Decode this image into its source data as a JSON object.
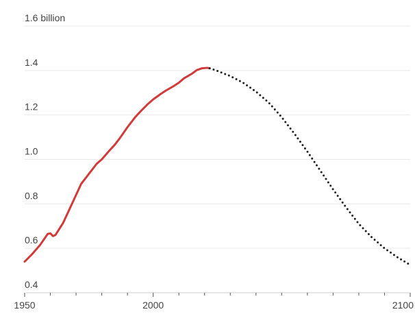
{
  "chart_data": {
    "type": "line",
    "title": "",
    "xlabel": "",
    "ylabel": "",
    "xlim": [
      1950,
      2100
    ],
    "ylim": [
      0.4,
      1.6
    ],
    "grid": true,
    "legend": "none",
    "y_ticks": [
      {
        "value": 0.4,
        "label": "0.4"
      },
      {
        "value": 0.6,
        "label": "0.6"
      },
      {
        "value": 0.8,
        "label": "0.8"
      },
      {
        "value": 1.0,
        "label": "1.0"
      },
      {
        "value": 1.2,
        "label": "1.2"
      },
      {
        "value": 1.4,
        "label": "1.4"
      },
      {
        "value": 1.6,
        "label": "1.6 billion"
      }
    ],
    "x_ticks": [
      {
        "value": 1950,
        "label": "1950"
      },
      {
        "value": 2000,
        "label": "2000"
      },
      {
        "value": 2100,
        "label": "2100"
      }
    ],
    "x_minor_ticks": [
      1960,
      1970,
      1980,
      1990,
      2010,
      2020,
      2030,
      2040,
      2050,
      2060,
      2070,
      2080,
      2090
    ],
    "series": [
      {
        "style": "solid",
        "color": "#d23a3a",
        "points": [
          [
            1950,
            0.54
          ],
          [
            1953,
            0.575
          ],
          [
            1956,
            0.615
          ],
          [
            1959,
            0.665
          ],
          [
            1960,
            0.667
          ],
          [
            1961,
            0.655
          ],
          [
            1962,
            0.66
          ],
          [
            1965,
            0.715
          ],
          [
            1968,
            0.79
          ],
          [
            1970,
            0.84
          ],
          [
            1972,
            0.89
          ],
          [
            1975,
            0.935
          ],
          [
            1978,
            0.98
          ],
          [
            1980,
            1.0
          ],
          [
            1983,
            1.04
          ],
          [
            1985,
            1.065
          ],
          [
            1987,
            1.095
          ],
          [
            1990,
            1.145
          ],
          [
            1993,
            1.19
          ],
          [
            1995,
            1.215
          ],
          [
            1998,
            1.25
          ],
          [
            2000,
            1.27
          ],
          [
            2003,
            1.295
          ],
          [
            2005,
            1.31
          ],
          [
            2008,
            1.33
          ],
          [
            2010,
            1.345
          ],
          [
            2012,
            1.365
          ],
          [
            2015,
            1.385
          ],
          [
            2017,
            1.402
          ],
          [
            2019,
            1.41
          ],
          [
            2021,
            1.412
          ],
          [
            2022,
            1.41
          ]
        ]
      },
      {
        "style": "dotted",
        "color": "#222222",
        "points": [
          [
            2022,
            1.41
          ],
          [
            2025,
            1.398
          ],
          [
            2030,
            1.375
          ],
          [
            2035,
            1.345
          ],
          [
            2040,
            1.305
          ],
          [
            2045,
            1.255
          ],
          [
            2050,
            1.19
          ],
          [
            2055,
            1.115
          ],
          [
            2060,
            1.035
          ],
          [
            2065,
            0.95
          ],
          [
            2070,
            0.865
          ],
          [
            2075,
            0.785
          ],
          [
            2080,
            0.71
          ],
          [
            2085,
            0.65
          ],
          [
            2090,
            0.6
          ],
          [
            2095,
            0.56
          ],
          [
            2100,
            0.525
          ]
        ]
      }
    ]
  }
}
